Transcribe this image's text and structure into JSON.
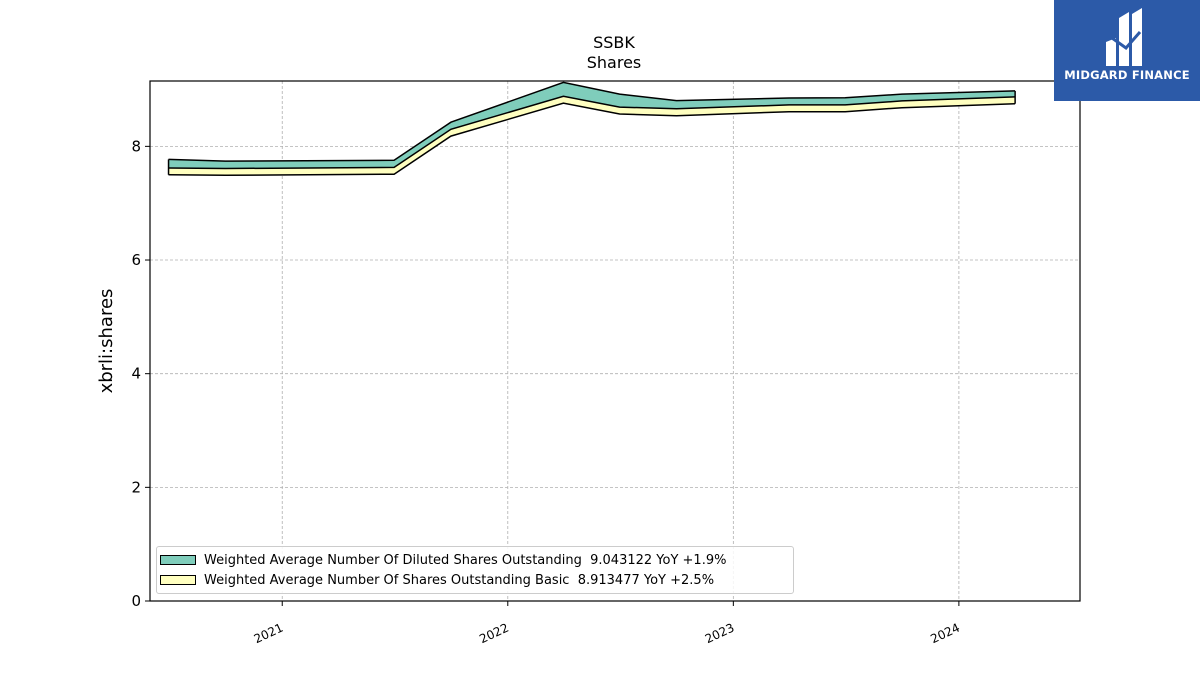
{
  "chart_data": {
    "type": "area",
    "title": "SSBK",
    "subtitle": "Shares",
    "xlabel": "",
    "ylabel": "xbrli:shares",
    "ylim": [
      0,
      9.15
    ],
    "y_ticks": [
      "0",
      "2",
      "4",
      "6",
      "8"
    ],
    "x_ticks": [
      "2021",
      "2022",
      "2023",
      "2024"
    ],
    "grid": true,
    "legend_position": "lower-left",
    "x": [
      "2020-07-01",
      "2020-10-01",
      "2021-07-01",
      "2021-10-01",
      "2022-04-01",
      "2022-07-01",
      "2022-10-01",
      "2023-04-01",
      "2023-07-01",
      "2023-10-01",
      "2024-04-01"
    ],
    "series": [
      {
        "name": "Weighted Average Number Of Diluted Shares Outstanding  9.043122 YoY +1.9%",
        "color": "#7fcdbb",
        "values": [
          0.15,
          0.13,
          0.125,
          0.125,
          0.245,
          0.23,
          0.145,
          0.12,
          0.125,
          0.12,
          0.105
        ]
      },
      {
        "name": "Weighted Average Number Of Shares Outstanding Basic  8.913477 YoY +2.5%",
        "color": "#ffffc0",
        "values": [
          7.62,
          7.61,
          7.63,
          8.3,
          8.88,
          8.69,
          8.66,
          8.73,
          8.73,
          8.8,
          8.87
        ]
      }
    ]
  },
  "logo": {
    "text": "MIDGARD FINANCE",
    "background": "#2c5aa8"
  }
}
